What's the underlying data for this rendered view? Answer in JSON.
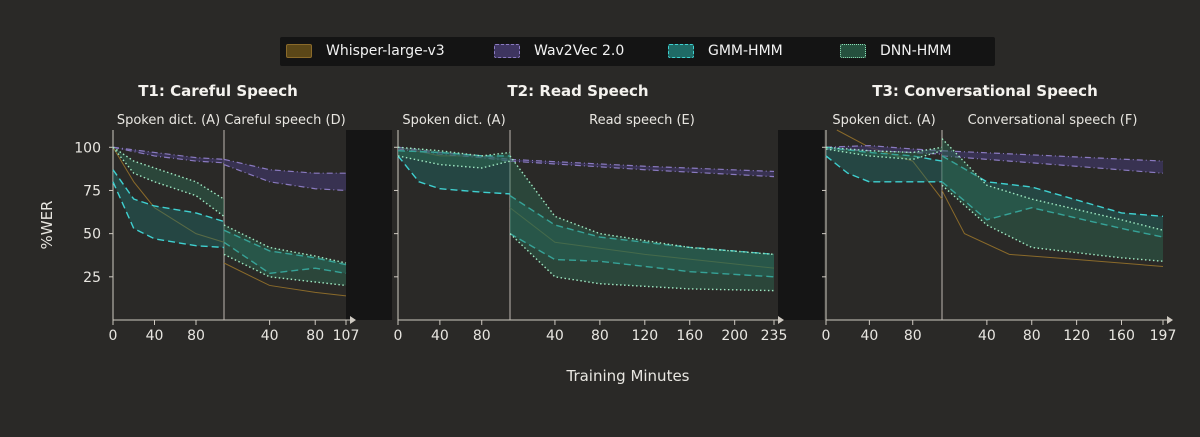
{
  "legend": [
    {
      "name": "Whisper-large-v3",
      "color": "#8a6a2a",
      "style": "solid"
    },
    {
      "name": "Wav2Vec 2.0",
      "color": "#6a58a0",
      "style": "dashdot"
    },
    {
      "name": "GMM-HMM",
      "color": "#3fd0d0",
      "style": "dashed"
    },
    {
      "name": "DNN-HMM",
      "color": "#6fc5a0",
      "style": "dotted"
    }
  ],
  "y_axis_title": "%WER",
  "x_axis_title": "Training Minutes",
  "chart_data": [
    {
      "type": "line",
      "title_bold": "T1",
      "title_rest": ": Careful Speech",
      "segments": [
        {
          "label": "Spoken dict. (A)",
          "xlim": [
            0,
            107
          ],
          "x_ticks": [
            0,
            40,
            80
          ]
        },
        {
          "label": "Careful speech (D)",
          "xlim": [
            0,
            107
          ],
          "x_ticks": [
            40,
            80,
            107
          ]
        }
      ],
      "y_ticks": [
        25,
        50,
        75,
        100
      ],
      "ylim": [
        0,
        110
      ],
      "series": [
        {
          "name": "Whisper-large-v3",
          "seg1": [
            [
              0,
              100
            ],
            [
              20,
              80
            ],
            [
              40,
              65
            ],
            [
              80,
              50
            ],
            [
              107,
              45
            ]
          ],
          "seg2": [
            [
              0,
              33
            ],
            [
              40,
              20
            ],
            [
              80,
              16
            ],
            [
              107,
              14
            ]
          ]
        },
        {
          "name": "Wav2Vec 2.0",
          "seg1": {
            "upper": [
              [
                0,
                100
              ],
              [
                40,
                97
              ],
              [
                80,
                94
              ],
              [
                107,
                93
              ]
            ],
            "lower": [
              [
                0,
                100
              ],
              [
                40,
                95
              ],
              [
                80,
                92
              ],
              [
                107,
                91
              ]
            ]
          },
          "seg2": {
            "upper": [
              [
                0,
                93
              ],
              [
                40,
                87
              ],
              [
                80,
                85
              ],
              [
                107,
                85
              ]
            ],
            "lower": [
              [
                0,
                90
              ],
              [
                40,
                80
              ],
              [
                80,
                76
              ],
              [
                107,
                75
              ]
            ]
          }
        },
        {
          "name": "GMM-HMM",
          "seg1": {
            "upper": [
              [
                0,
                87
              ],
              [
                20,
                70
              ],
              [
                40,
                66
              ],
              [
                80,
                62
              ],
              [
                107,
                57
              ]
            ],
            "lower": [
              [
                0,
                80
              ],
              [
                20,
                53
              ],
              [
                40,
                47
              ],
              [
                80,
                43
              ],
              [
                107,
                42
              ]
            ]
          },
          "seg2": {
            "upper": [
              [
                0,
                52
              ],
              [
                40,
                40
              ],
              [
                80,
                36
              ],
              [
                107,
                32
              ]
            ],
            "lower": [
              [
                0,
                45
              ],
              [
                40,
                27
              ],
              [
                80,
                30
              ],
              [
                107,
                27
              ]
            ]
          }
        },
        {
          "name": "DNN-HMM",
          "seg1": {
            "upper": [
              [
                0,
                100
              ],
              [
                20,
                92
              ],
              [
                40,
                88
              ],
              [
                80,
                80
              ],
              [
                107,
                70
              ]
            ],
            "lower": [
              [
                0,
                100
              ],
              [
                20,
                85
              ],
              [
                40,
                80
              ],
              [
                80,
                72
              ],
              [
                107,
                60
              ]
            ]
          },
          "seg2": {
            "upper": [
              [
                0,
                55
              ],
              [
                40,
                42
              ],
              [
                80,
                37
              ],
              [
                107,
                33
              ]
            ],
            "lower": [
              [
                0,
                38
              ],
              [
                40,
                25
              ],
              [
                80,
                22
              ],
              [
                107,
                20
              ]
            ]
          }
        }
      ]
    },
    {
      "type": "line",
      "title_bold": "T2",
      "title_rest": ": Read Speech",
      "segments": [
        {
          "label": "Spoken dict. (A)",
          "xlim": [
            0,
            107
          ],
          "x_ticks": [
            0,
            40,
            80
          ]
        },
        {
          "label": "Read speech (E)",
          "xlim": [
            0,
            235
          ],
          "x_ticks": [
            40,
            80,
            120,
            160,
            200,
            235
          ]
        }
      ],
      "y_ticks": [
        25,
        50,
        75,
        100
      ],
      "ylim": [
        0,
        110
      ],
      "series": [
        {
          "name": "Whisper-large-v3",
          "seg1": [
            [
              0,
              100
            ],
            [
              40,
              95
            ],
            [
              80,
              95
            ],
            [
              107,
              92
            ]
          ],
          "seg2": [
            [
              0,
              65
            ],
            [
              40,
              45
            ],
            [
              120,
              38
            ],
            [
              235,
              30
            ]
          ]
        },
        {
          "name": "Wav2Vec 2.0",
          "seg1": {
            "upper": [
              [
                0,
                100
              ],
              [
                40,
                97
              ],
              [
                80,
                95
              ],
              [
                107,
                93
              ]
            ],
            "lower": [
              [
                0,
                99
              ],
              [
                40,
                96
              ],
              [
                80,
                94
              ],
              [
                107,
                92
              ]
            ]
          },
          "seg2": {
            "upper": [
              [
                0,
                93
              ],
              [
                120,
                89
              ],
              [
                235,
                86
              ]
            ],
            "lower": [
              [
                0,
                92
              ],
              [
                120,
                87
              ],
              [
                235,
                83
              ]
            ]
          }
        },
        {
          "name": "GMM-HMM",
          "seg1": {
            "upper": [
              [
                0,
                98
              ],
              [
                40,
                97
              ],
              [
                80,
                95
              ],
              [
                107,
                95
              ]
            ],
            "lower": [
              [
                0,
                95
              ],
              [
                20,
                80
              ],
              [
                40,
                76
              ],
              [
                80,
                74
              ],
              [
                107,
                73
              ]
            ]
          },
          "seg2": {
            "upper": [
              [
                0,
                72
              ],
              [
                40,
                55
              ],
              [
                80,
                48
              ],
              [
                160,
                42
              ],
              [
                235,
                38
              ]
            ],
            "lower": [
              [
                0,
                50
              ],
              [
                40,
                35
              ],
              [
                80,
                34
              ],
              [
                160,
                28
              ],
              [
                235,
                25
              ]
            ]
          }
        },
        {
          "name": "DNN-HMM",
          "seg1": {
            "upper": [
              [
                0,
                100
              ],
              [
                40,
                98
              ],
              [
                80,
                95
              ],
              [
                107,
                97
              ]
            ],
            "lower": [
              [
                0,
                95
              ],
              [
                40,
                90
              ],
              [
                80,
                88
              ],
              [
                107,
                92
              ]
            ]
          },
          "seg2": {
            "upper": [
              [
                0,
                95
              ],
              [
                40,
                60
              ],
              [
                80,
                50
              ],
              [
                160,
                42
              ],
              [
                235,
                38
              ]
            ],
            "lower": [
              [
                0,
                50
              ],
              [
                40,
                25
              ],
              [
                80,
                21
              ],
              [
                160,
                18
              ],
              [
                235,
                17
              ]
            ]
          }
        }
      ]
    },
    {
      "type": "line",
      "title_bold": "T3",
      "title_rest": ": Conversational Speech",
      "segments": [
        {
          "label": "Spoken dict. (A)",
          "xlim": [
            0,
            107
          ],
          "x_ticks": [
            0,
            40,
            80
          ]
        },
        {
          "label": "Conversational speech (F)",
          "xlim": [
            0,
            197
          ],
          "x_ticks": [
            40,
            80,
            120,
            160,
            197
          ]
        }
      ],
      "y_ticks": [
        25,
        50,
        75,
        100
      ],
      "ylim": [
        0,
        110
      ],
      "series": [
        {
          "name": "Whisper-large-v3",
          "seg1": [
            [
              10,
              110
            ],
            [
              40,
              100
            ],
            [
              80,
              92
            ],
            [
              107,
              70
            ]
          ],
          "seg2": [
            [
              0,
              75
            ],
            [
              20,
              50
            ],
            [
              60,
              38
            ],
            [
              120,
              35
            ],
            [
              197,
              31
            ]
          ]
        },
        {
          "name": "Wav2Vec 2.0",
          "seg1": {
            "upper": [
              [
                0,
                100
              ],
              [
                40,
                101
              ],
              [
                80,
                99
              ],
              [
                107,
                98
              ]
            ],
            "lower": [
              [
                0,
                99
              ],
              [
                40,
                98
              ],
              [
                80,
                97
              ],
              [
                107,
                96
              ]
            ]
          },
          "seg2": {
            "upper": [
              [
                0,
                98
              ],
              [
                100,
                95
              ],
              [
                197,
                92
              ]
            ],
            "lower": [
              [
                0,
                95
              ],
              [
                100,
                90
              ],
              [
                197,
                85
              ]
            ]
          }
        },
        {
          "name": "GMM-HMM",
          "seg1": {
            "upper": [
              [
                0,
                100
              ],
              [
                40,
                97
              ],
              [
                80,
                95
              ],
              [
                107,
                92
              ]
            ],
            "lower": [
              [
                0,
                95
              ],
              [
                20,
                85
              ],
              [
                40,
                80
              ],
              [
                80,
                80
              ],
              [
                107,
                80
              ]
            ]
          },
          "seg2": {
            "upper": [
              [
                0,
                95
              ],
              [
                40,
                80
              ],
              [
                80,
                77
              ],
              [
                160,
                62
              ],
              [
                197,
                60
              ]
            ],
            "lower": [
              [
                0,
                80
              ],
              [
                40,
                58
              ],
              [
                80,
                65
              ],
              [
                160,
                53
              ],
              [
                197,
                48
              ]
            ]
          }
        },
        {
          "name": "DNN-HMM",
          "seg1": {
            "upper": [
              [
                0,
                100
              ],
              [
                40,
                98
              ],
              [
                80,
                97
              ],
              [
                107,
                100
              ]
            ],
            "lower": [
              [
                0,
                99
              ],
              [
                40,
                95
              ],
              [
                80,
                93
              ],
              [
                107,
                98
              ]
            ]
          },
          "seg2": {
            "upper": [
              [
                0,
                105
              ],
              [
                40,
                78
              ],
              [
                80,
                70
              ],
              [
                160,
                58
              ],
              [
                197,
                52
              ]
            ],
            "lower": [
              [
                0,
                78
              ],
              [
                40,
                55
              ],
              [
                80,
                42
              ],
              [
                160,
                36
              ],
              [
                197,
                34
              ]
            ]
          }
        }
      ]
    }
  ]
}
